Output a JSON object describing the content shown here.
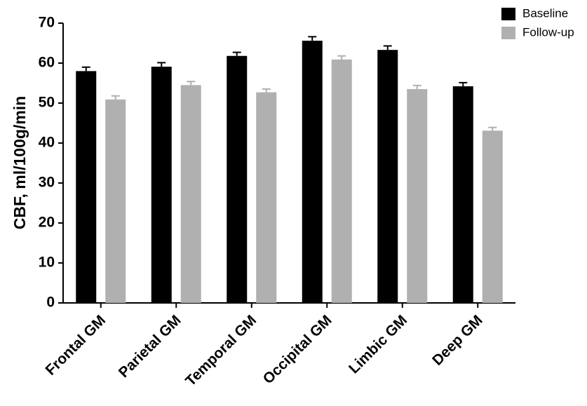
{
  "chart_data": {
    "type": "bar",
    "ylabel": "CBF, ml/100g/min",
    "categories": [
      "Frontal GM",
      "Parietal GM",
      "Temporal GM",
      "Occipital GM",
      "Limbic GM",
      "Deep GM"
    ],
    "series": [
      {
        "name": "Baseline",
        "color": "#000000",
        "values": [
          58,
          59.1,
          61.8,
          65.6,
          63.3,
          54.2
        ],
        "errors": [
          1,
          1,
          0.9,
          1,
          1,
          0.9
        ]
      },
      {
        "name": "Follow-up",
        "color": "#b0b0b0",
        "values": [
          50.9,
          54.5,
          52.7,
          60.9,
          53.5,
          43.1
        ],
        "errors": [
          0.9,
          0.9,
          0.8,
          0.9,
          0.9,
          0.8
        ]
      }
    ],
    "ylim": [
      0,
      70
    ],
    "yticks": [
      0,
      10,
      20,
      30,
      40,
      50,
      60,
      70
    ],
    "grid": false,
    "legend": "top-right"
  }
}
